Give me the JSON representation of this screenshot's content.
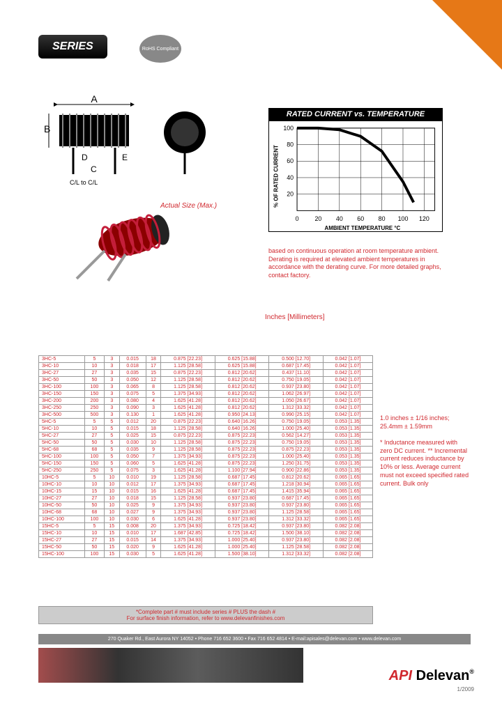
{
  "header": {
    "series_label": "SERIES",
    "rohs": "RoHS Compliant"
  },
  "actual_size_label": "Actual Size (Max.)",
  "chart": {
    "title": "RATED CURRENT vs. TEMPERATURE",
    "ylabel": "% OF RATED CURRENT",
    "xlabel": "AMBIENT TEMPERATURE °C",
    "xticks": [
      0,
      20,
      40,
      60,
      80,
      100,
      120
    ],
    "yticks": [
      20,
      40,
      60,
      80,
      100
    ],
    "curve": [
      [
        0,
        100
      ],
      [
        20,
        100
      ],
      [
        40,
        98
      ],
      [
        60,
        90
      ],
      [
        80,
        72
      ],
      [
        100,
        35
      ],
      [
        110,
        10
      ]
    ],
    "line_color": "#000000",
    "line_width": 4,
    "grid_color": "#000000",
    "background": "#ffffff"
  },
  "chart_note": "based on continuous operation at room temperature ambient. Derating is required at elevated ambient temperatures in accordance with the derating curve. For more detailed graphs, contact factory.",
  "units_label": "Inches [Millimeters]",
  "table_rows": [
    [
      "3HC-5",
      "5",
      "3",
      "0.015",
      "18",
      "0.875 [22.23]",
      "0.625 [15.88]",
      "0.500 [12.70]",
      "0.042 [1.07]"
    ],
    [
      "3HC-10",
      "10",
      "3",
      "0.018",
      "17",
      "1.125 [28.58]",
      "0.625 [15.88]",
      "0.687 [17.45]",
      "0.042 [1.07]"
    ],
    [
      "3HC-27",
      "27",
      "3",
      "0.035",
      "15",
      "0.875 [22.23]",
      "0.812 [20.62]",
      "0.437 [11.10]",
      "0.042 [1.07]"
    ],
    [
      "3HC-50",
      "50",
      "3",
      "0.050",
      "12",
      "1.125 [28.58]",
      "0.812 [20.62]",
      "0.750 [19.05]",
      "0.042 [1.07]"
    ],
    [
      "3HC-100",
      "100",
      "3",
      "0.065",
      "8",
      "1.125 [28.58]",
      "0.812 [20.62]",
      "0.937 [23.80]",
      "0.042 [1.07]"
    ],
    [
      "3HC-150",
      "150",
      "3",
      "0.075",
      "5",
      "1.375 [34.93]",
      "0.812 [20.62]",
      "1.062 [26.97]",
      "0.042 [1.07]"
    ],
    [
      "3HC-200",
      "200",
      "3",
      "0.080",
      "4",
      "1.625 [41.28]",
      "0.812 [20.62]",
      "1.050 [26.67]",
      "0.042 [1.07]"
    ],
    [
      "3HC-250",
      "250",
      "3",
      "0.090",
      "3",
      "1.625 [41.28]",
      "0.812 [20.62]",
      "1.312 [33.32]",
      "0.042 [1.07]"
    ],
    [
      "3HC-500",
      "500",
      "3",
      "0.130",
      "1",
      "1.625 [41.28]",
      "0.950 [24.13]",
      "0.990 [25.15]",
      "0.042 [1.07]"
    ],
    [
      "5HC-5",
      "5",
      "5",
      "0.012",
      "20",
      "0.875 [22.23]",
      "0.640 [16.26]",
      "0.750 [19.05]",
      "0.053 [1.35]"
    ],
    [
      "5HC-10",
      "10",
      "5",
      "0.015",
      "18",
      "1.125 [28.58]",
      "0.640 [16.26]",
      "1.000 [25.40]",
      "0.053 [1.35]"
    ],
    [
      "5HC-27",
      "27",
      "5",
      "0.025",
      "15",
      "0.875 [22.23]",
      "0.875 [22.23]",
      "0.562 [14.27]",
      "0.053 [1.35]"
    ],
    [
      "5HC-50",
      "50",
      "5",
      "0.030",
      "10",
      "1.125 [28.58]",
      "0.875 [22.23]",
      "0.750 [19.05]",
      "0.053 [1.35]"
    ],
    [
      "5HC-68",
      "68",
      "5",
      "0.035",
      "9",
      "1.125 [28.58]",
      "0.875 [22.23]",
      "0.875 [22.23]",
      "0.053 [1.35]"
    ],
    [
      "5HC-100",
      "100",
      "5",
      "0.050",
      "7",
      "1.375 [34.93]",
      "0.875 [22.23]",
      "1.000 [25.40]",
      "0.053 [1.35]"
    ],
    [
      "5HC-150",
      "150",
      "5",
      "0.060",
      "5",
      "1.625 [41.28]",
      "0.875 [22.23]",
      "1.250 [31.75]",
      "0.053 [1.35]"
    ],
    [
      "5HC-250",
      "250",
      "5",
      "0.075",
      "3",
      "1.625 [41.28]",
      "1.100 [27.94]",
      "0.900 [22.86]",
      "0.053 [1.35]"
    ],
    [
      "10HC-5",
      "5",
      "10",
      "0.010",
      "19",
      "1.125 [28.58]",
      "0.687 [17.45]",
      "0.812 [20.62]",
      "0.065 [1.65]"
    ],
    [
      "10HC-10",
      "10",
      "10",
      "0.012",
      "17",
      "1.375 [34.93]",
      "0.687 [17.45]",
      "1.218 [30.94]",
      "0.065 [1.65]"
    ],
    [
      "10HC-15",
      "15",
      "10",
      "0.015",
      "16",
      "1.625 [41.28]",
      "0.687 [17.45]",
      "1.415 [35.94]",
      "0.065 [1.65]"
    ],
    [
      "10HC-27",
      "27",
      "10",
      "0.018",
      "15",
      "1.125 [28.58]",
      "0.937 [23.80]",
      "0.687 [17.45]",
      "0.065 [1.65]"
    ],
    [
      "10HC-50",
      "50",
      "10",
      "0.025",
      "9",
      "1.375 [34.93]",
      "0.937 [23.80]",
      "0.937 [23.80]",
      "0.065 [1.65]"
    ],
    [
      "10HC-68",
      "68",
      "10",
      "0.027",
      "9",
      "1.375 [34.93]",
      "0.937 [23.80]",
      "1.125 [28.58]",
      "0.065 [1.65]"
    ],
    [
      "10HC-100",
      "100",
      "10",
      "0.030",
      "6",
      "1.625 [41.28]",
      "0.937 [23.80]",
      "1.312 [33.32]",
      "0.065 [1.65]"
    ],
    [
      "15HC-5",
      "5",
      "15",
      "0.008",
      "20",
      "1.375 [34.93]",
      "0.725 [18.42]",
      "0.937 [23.80]",
      "0.082 [2.08]"
    ],
    [
      "15HC-10",
      "10",
      "15",
      "0.010",
      "17",
      "1.687 [42.85]",
      "0.725 [18.42]",
      "1.500 [38.10]",
      "0.082 [2.08]"
    ],
    [
      "15HC-27",
      "27",
      "15",
      "0.015",
      "14",
      "1.375 [34.93]",
      "1.000 [25.40]",
      "0.937 [23.80]",
      "0.082 [2.08]"
    ],
    [
      "15HC-50",
      "50",
      "15",
      "0.020",
      "9",
      "1.625 [41.28]",
      "1.000 [25.40]",
      "1.125 [28.58]",
      "0.082 [2.08]"
    ],
    [
      "15HC-100",
      "100",
      "15",
      "0.030",
      "5",
      "1.625 [41.28]",
      "1.500 [38.10]",
      "1.312 [33.32]",
      "0.082 [2.08]"
    ]
  ],
  "side_notes": {
    "line1": "1.0 inches ± 1/16 inches;",
    "line2": "25.4mm ± 1.59mm",
    "para": "* Inductance measured with zero DC current. ** Incremental current reduces inductance by 10% or less. Average current must not exceed specified rated current. Bulk only"
  },
  "footer_notes": {
    "line1": "*Complete part # must include series # PLUS the dash #",
    "line2": "For surface finish information, refer to www.delevanfinishes.com"
  },
  "footer_bar": "270 Quaker Rd., East Aurora NY 14052 • Phone 716 652 3600 • Fax 716 652 4814 • E-mail:apisales@delevan.com • www.delevan.com",
  "logo": {
    "api": "API",
    "delevan": "Delevan",
    "r": "®"
  },
  "date": "1/2009"
}
